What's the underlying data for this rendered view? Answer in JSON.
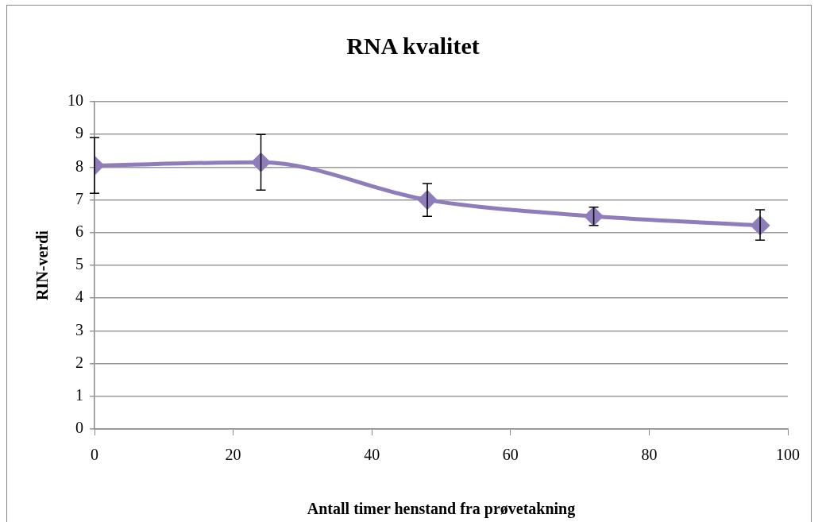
{
  "chart_data": {
    "type": "line",
    "title": "RNA kvalitet",
    "xlabel": "Antall timer henstand fra prøvetakning",
    "ylabel": "RIN-verdi",
    "x": [
      0,
      24,
      48,
      72,
      96
    ],
    "series": [
      {
        "color": "#8f7cba",
        "values": [
          8.05,
          8.15,
          7.0,
          6.5,
          6.22
        ],
        "errors": [
          [
            7.2,
            8.9
          ],
          [
            7.3,
            9.0
          ],
          [
            6.5,
            7.5
          ],
          [
            6.22,
            6.78
          ],
          [
            5.77,
            6.7
          ]
        ]
      }
    ],
    "xlim": [
      0,
      100
    ],
    "xticks": [
      0,
      20,
      40,
      60,
      80,
      100
    ],
    "ylim": [
      0,
      10
    ],
    "yticks": [
      0,
      1,
      2,
      3,
      4,
      5,
      6,
      7,
      8,
      9,
      10
    ],
    "grid": "y",
    "legend": false,
    "marker": "diamond",
    "line_style": "solid"
  }
}
